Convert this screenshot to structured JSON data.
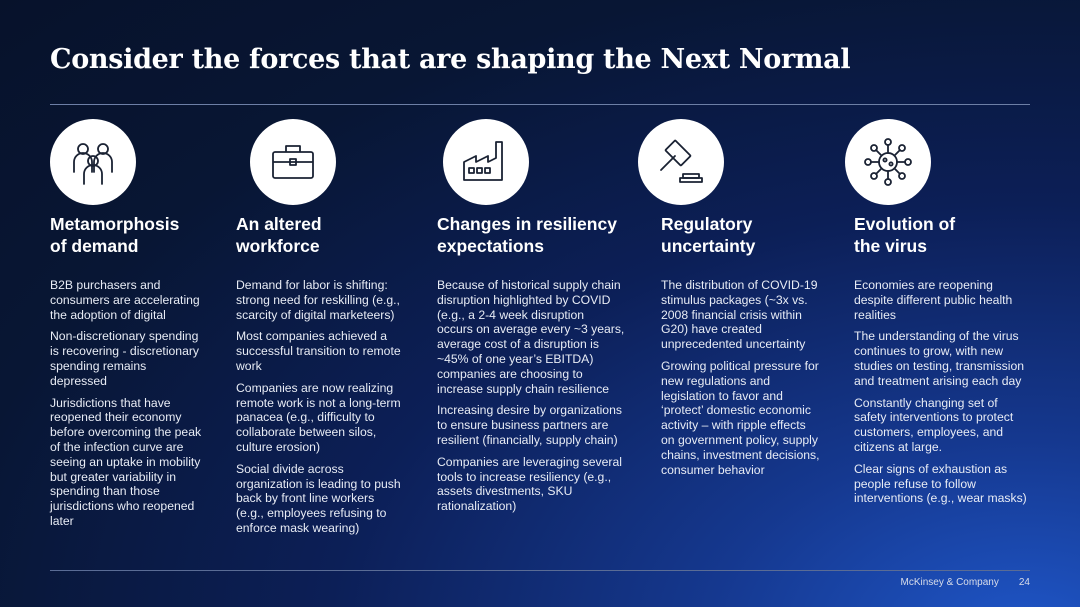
{
  "title": "Consider the forces that are shaping the Next Normal",
  "columns": [
    {
      "icon": "people-icon",
      "heading": "Metamorphosis\nof demand",
      "paragraphs": [
        "B2B purchasers and\nconsumers are accelerating\nthe adoption of digital",
        "Non-discretionary spending\nis recovering - discretionary\nspending remains\ndepressed",
        "Jurisdictions that have\nreopened their economy\nbefore overcoming the peak\nof the infection curve are\nseeing an uptake in mobility\nbut greater variability in\nspending than those\njurisdictions who reopened\nlater"
      ]
    },
    {
      "icon": "briefcase-icon",
      "heading": "An altered\nworkforce",
      "paragraphs": [
        "Demand for labor is shifting:\nstrong need for reskilling (e.g.,\nscarcity of digital marketeers)",
        "Most companies achieved a\nsuccessful transition to remote\nwork",
        "Companies are now realizing\nremote work is not a long-term\npanacea  (e.g., difficulty to\ncollaborate between silos,\nculture erosion)",
        "Social divide across\norganization is leading to push\nback by front line workers\n(e.g., employees refusing to\nenforce mask wearing)"
      ]
    },
    {
      "icon": "factory-icon",
      "heading": "Changes in resiliency\nexpectations",
      "paragraphs": [
        "Because of historical supply chain\ndisruption highlighted by COVID\n(e.g., a 2-4 week  disruption\noccurs on average every ~3 years,\naverage cost of a disruption is\n~45% of one year’s EBITDA)\ncompanies are choosing to\nincrease supply chain resilience",
        "Increasing desire by organizations\nto ensure business partners are\nresilient (financially, supply chain)",
        "Companies are leveraging several\ntools to increase resiliency (e.g.,\nassets divestments, SKU\nrationalization)"
      ]
    },
    {
      "icon": "gavel-icon",
      "heading": "Regulatory\nuncertainty",
      "paragraphs": [
        "The distribution of COVID-19\nstimulus packages (~3x vs.\n2008 financial crisis within\nG20) have created\nunprecedented uncertainty",
        "Growing political pressure for\nnew regulations and\nlegislation to favor and\n‘protect’ domestic economic\nactivity – with ripple effects\non government policy, supply\nchains, investment decisions,\nconsumer behavior"
      ]
    },
    {
      "icon": "virus-icon",
      "heading": "Evolution of\nthe virus",
      "paragraphs": [
        "Economies are reopening\ndespite different public health\nrealities",
        "The understanding of the virus\ncontinues to grow, with new\nstudies on testing, transmission\nand treatment arising each day",
        "Constantly changing set of\nsafety interventions to protect\ncustomers, employees, and\ncitizens at large.",
        "Clear signs of exhaustion as\npeople refuse to follow\ninterventions (e.g., wear masks)"
      ]
    }
  ],
  "footer": {
    "brand": "McKinsey & Company",
    "page": "24"
  }
}
